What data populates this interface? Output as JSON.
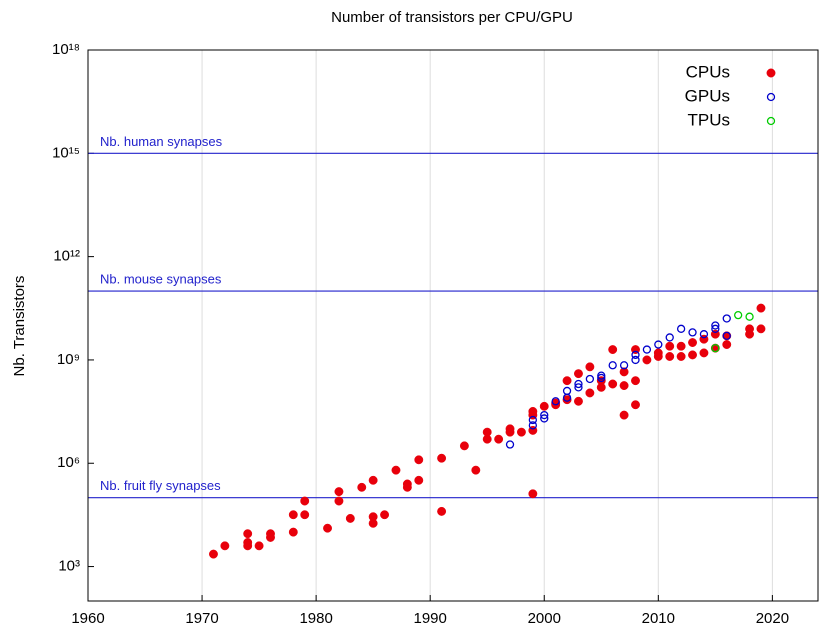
{
  "chart_data": {
    "type": "scatter",
    "title": "Number of transistors per CPU/GPU",
    "y_label": "Nb. Transistors",
    "xlim": [
      1960,
      2024
    ],
    "xticks": [
      1960,
      1970,
      1980,
      1990,
      2000,
      2010,
      2020
    ],
    "ylim": [
      100,
      1e+18
    ],
    "y_log": true,
    "yticks": [
      {
        "value": 1000,
        "label": "10³"
      },
      {
        "value": 1000000,
        "label": "10⁶"
      },
      {
        "value": 1000000000,
        "label": "10⁹"
      },
      {
        "value": 1000000000000,
        "label": "10¹²"
      },
      {
        "value": 1000000000000000,
        "label": "10¹⁵"
      },
      {
        "value": 1000000000000000000,
        "label": "10¹⁸"
      }
    ],
    "grid": "x",
    "legend": "top-right",
    "reference_lines": [
      {
        "label": "Nb. human synapses",
        "value": 1000000000000000.0,
        "color": "#2222cc"
      },
      {
        "label": "Nb. mouse synapses",
        "value": 100000000000.0,
        "color": "#2222cc"
      },
      {
        "label": "Nb. fruit fly synapses",
        "value": 100000.0,
        "color": "#2222cc"
      }
    ],
    "series": [
      {
        "name": "CPUs",
        "color": "#e8000b",
        "marker": "filled",
        "x": [
          1971,
          1972,
          1974,
          1974,
          1974,
          1975,
          1976,
          1976,
          1978,
          1978,
          1979,
          1979,
          1981,
          1982,
          1982,
          1983,
          1984,
          1985,
          1985,
          1985,
          1986,
          1987,
          1988,
          1988,
          1989,
          1989,
          1991,
          1991,
          1993,
          1994,
          1995,
          1995,
          1996,
          1997,
          1997,
          1998,
          1999,
          1999,
          1999,
          1999,
          2000,
          2001,
          2001,
          2002,
          2002,
          2003,
          2003,
          2004,
          2004,
          2005,
          2005,
          2006,
          2006,
          2007,
          2007,
          2007,
          2008,
          2008,
          2008,
          2009,
          2010,
          2010,
          2011,
          2011,
          2012,
          2012,
          2013,
          2013,
          2014,
          2014,
          2015,
          2015,
          2016,
          2016,
          2018,
          2018,
          2019,
          2019
        ],
        "values": [
          2300,
          4000,
          9000,
          5000,
          4000,
          4000,
          9000,
          7000,
          10000,
          32000,
          32000,
          80000,
          13000,
          150000,
          80000,
          25000,
          200000,
          320000,
          28000,
          18000,
          32000,
          630000,
          250000,
          200000,
          1260000,
          320000,
          1400000,
          40000,
          3200000,
          630000,
          8000000,
          5000000,
          5000000,
          10000000,
          8000000,
          8000000,
          130000,
          9000000,
          32000000,
          25000000,
          45000000,
          50000000,
          56000000,
          250000000,
          70000000,
          400000000,
          63000000,
          630000000,
          110000000,
          250000000,
          160000000,
          2000000000,
          200000000,
          25000000,
          180000000,
          450000000,
          50000000,
          250000000,
          2000000000,
          1000000000,
          1600000000,
          1260000000,
          2500000000,
          1260000000,
          2500000000,
          1260000000,
          3200000000,
          1400000000,
          4000000000,
          1600000000,
          5600000000,
          2200000000,
          2800000000,
          5000000000,
          8000000000,
          5600000000,
          32000000000,
          8000000000
        ]
      },
      {
        "name": "GPUs",
        "color": "#0000cc",
        "marker": "open",
        "x": [
          1997,
          1999,
          1999,
          2000,
          2000,
          2001,
          2002,
          2002,
          2003,
          2003,
          2004,
          2005,
          2005,
          2006,
          2007,
          2008,
          2008,
          2009,
          2010,
          2011,
          2012,
          2013,
          2014,
          2015,
          2015,
          2016,
          2016
        ],
        "values": [
          3500000,
          12600000,
          18000000,
          25000000,
          20000000,
          63000000,
          126000000,
          80000000,
          160000000,
          200000000,
          280000000,
          350000000,
          300000000,
          700000000,
          700000000,
          1400000000,
          1000000000,
          2000000000,
          2800000000,
          4500000000,
          8000000000,
          6300000000,
          5600000000,
          10000000000,
          8000000000,
          16000000000,
          5000000000
        ]
      },
      {
        "name": "TPUs",
        "color": "#00cc00",
        "marker": "open",
        "x": [
          2015,
          2017,
          2018
        ],
        "values": [
          2200000000,
          20000000000,
          18000000000
        ]
      }
    ]
  }
}
